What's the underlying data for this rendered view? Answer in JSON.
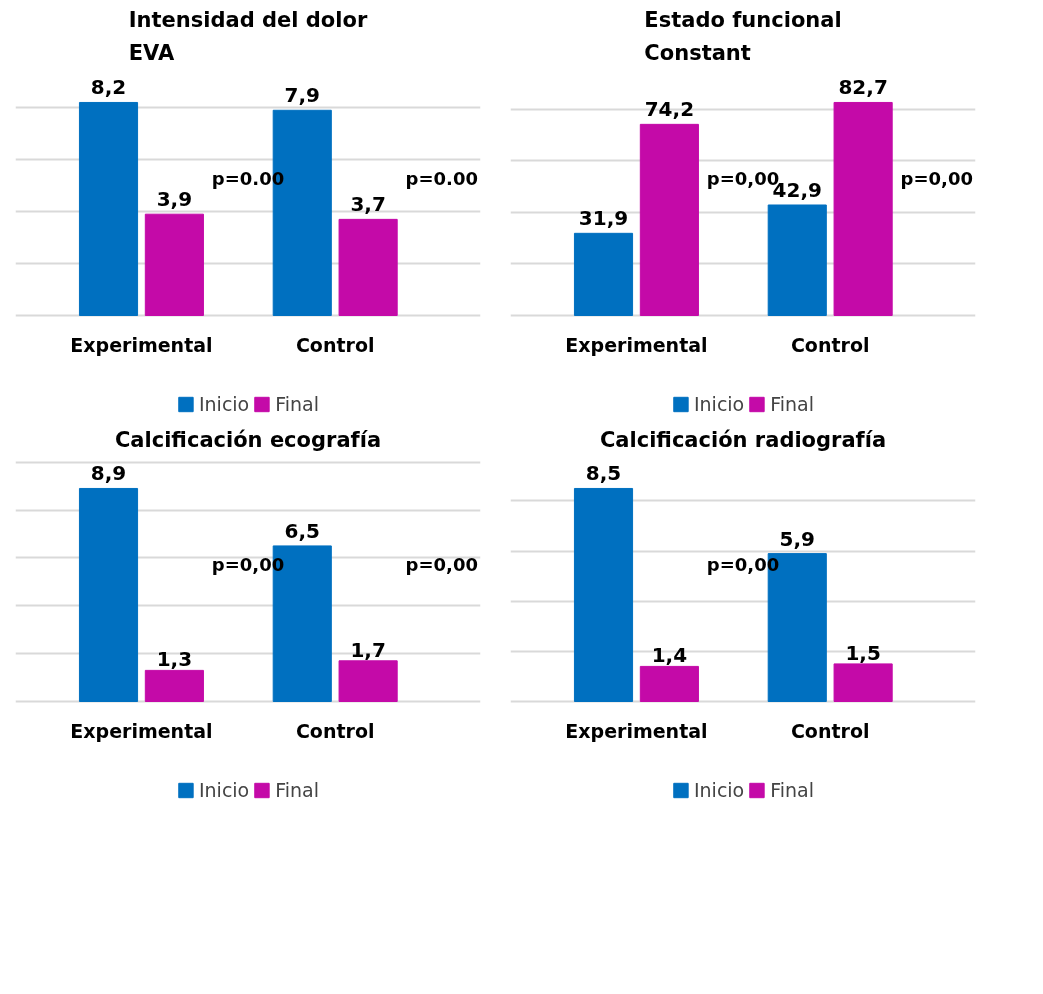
{
  "chart_data": [
    {
      "type": "bar",
      "title": "Intensidad del dolor\nEVA",
      "categories": [
        "Experimental",
        "Control"
      ],
      "series": [
        {
          "name": "Inicio",
          "color": "#0070c0",
          "values": [
            8.2,
            7.9
          ],
          "value_labels": [
            "8,2",
            "7,9"
          ]
        },
        {
          "name": "Final",
          "color": "#c40aa8",
          "values": [
            3.9,
            3.7
          ],
          "value_labels": [
            "3,9",
            "3,7"
          ]
        }
      ],
      "grid": "y",
      "legend": "bottom",
      "tick_labels": "x",
      "annotations": [
        "p=0.00",
        "p=0.00"
      ]
    },
    {
      "type": "bar",
      "title": "Estado funcional\nConstant",
      "categories": [
        "Experimental",
        "Control"
      ],
      "series": [
        {
          "name": "Inicio",
          "color": "#0070c0",
          "values": [
            31.9,
            42.9
          ],
          "value_labels": [
            "31,9",
            "42,9"
          ]
        },
        {
          "name": "Final",
          "color": "#c40aa8",
          "values": [
            74.2,
            82.7
          ],
          "value_labels": [
            "74,2",
            "82,7"
          ]
        }
      ],
      "grid": "y",
      "legend": "bottom",
      "tick_labels": "x",
      "annotations": [
        "p=0,00",
        "p=0,00"
      ]
    },
    {
      "type": "bar",
      "title": "Calcificación ecografía",
      "categories": [
        "Experimental",
        "Control"
      ],
      "series": [
        {
          "name": "Inicio",
          "color": "#0070c0",
          "values": [
            8.9,
            6.5
          ],
          "value_labels": [
            "8,9",
            "6,5"
          ]
        },
        {
          "name": "Final",
          "color": "#c40aa8",
          "values": [
            1.3,
            1.7
          ],
          "value_labels": [
            "1,3",
            "1,7"
          ]
        }
      ],
      "grid": "y",
      "legend": "bottom",
      "tick_labels": "x",
      "annotations": [
        "p=0,00",
        "p=0,00"
      ]
    },
    {
      "type": "bar",
      "title": "Calcificación radiografía",
      "categories": [
        "Experimental",
        "Control"
      ],
      "series": [
        {
          "name": "Inicio",
          "color": "#0070c0",
          "values": [
            8.5,
            5.9
          ],
          "value_labels": [
            "8,5",
            "5,9"
          ]
        },
        {
          "name": "Final",
          "color": "#c40aa8",
          "values": [
            1.4,
            1.5
          ],
          "value_labels": [
            "1,4",
            "1,5"
          ]
        }
      ],
      "grid": "y",
      "legend": "bottom",
      "tick_labels": "x",
      "annotations": [
        "p=0,00"
      ]
    }
  ]
}
